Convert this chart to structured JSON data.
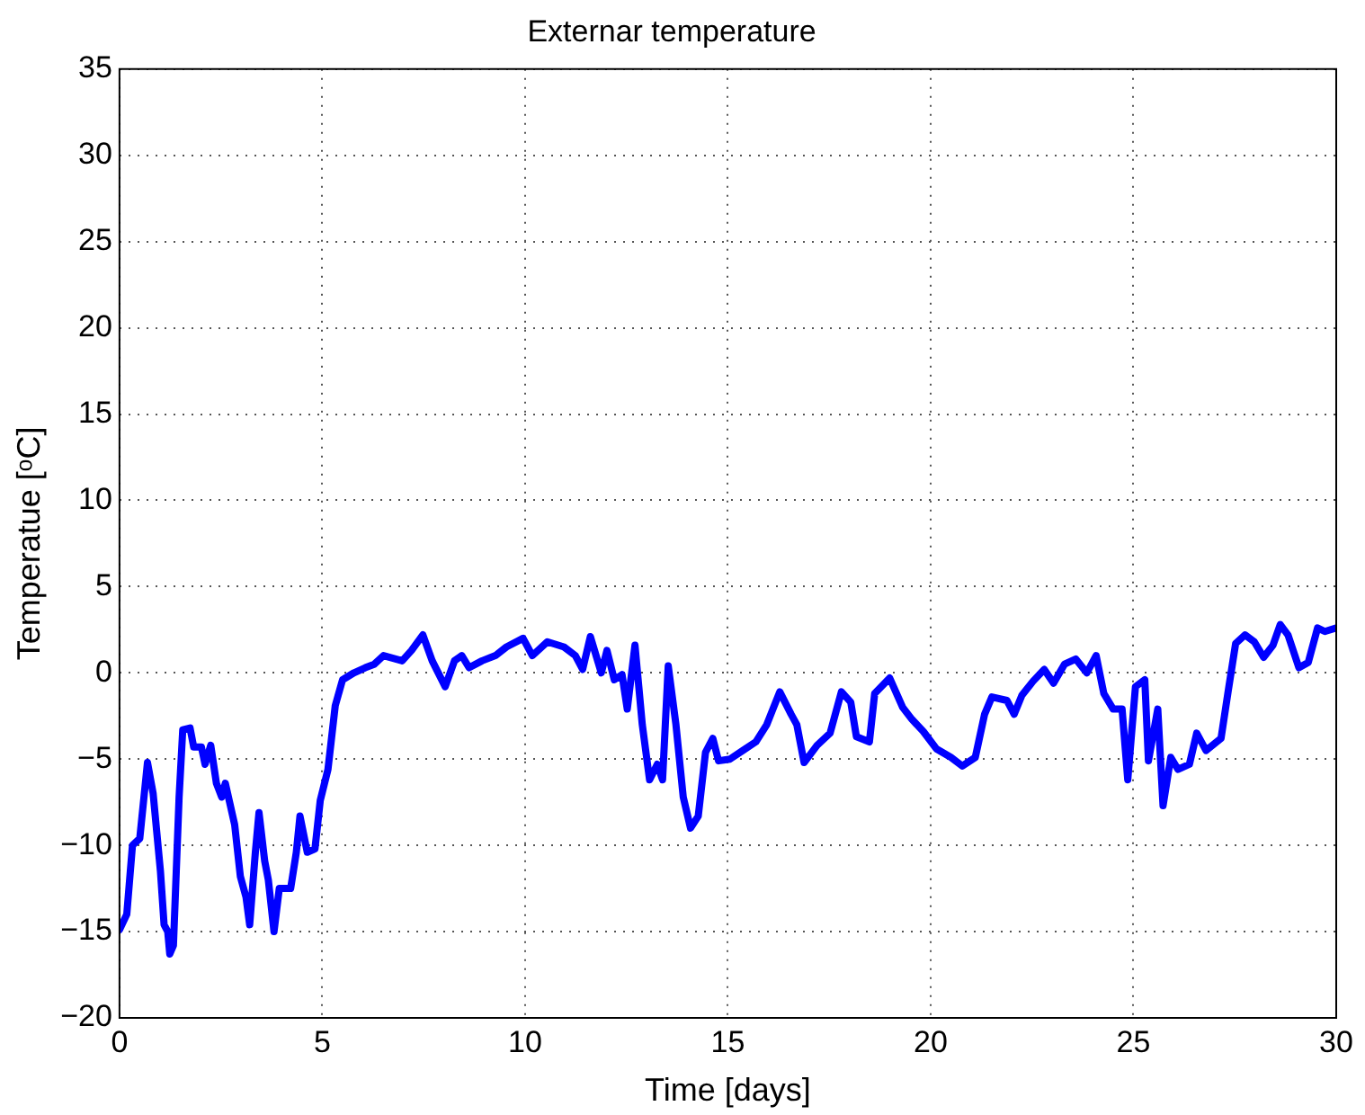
{
  "chart_data": {
    "type": "line",
    "title": "Externar temperature",
    "xlabel": "Time [days]",
    "ylabel": "Temperatue [ᵒC]",
    "xlim": [
      0,
      30
    ],
    "xticks": [
      0,
      5,
      10,
      15,
      20,
      25,
      30
    ],
    "ylim": [
      -20,
      35
    ],
    "yticks": [
      -20,
      -15,
      -10,
      -5,
      0,
      5,
      10,
      15,
      20,
      25,
      30,
      35
    ],
    "grid": true,
    "marker": "none",
    "series": [
      {
        "color": "#0000ff",
        "x": [
          0,
          0.18,
          0.32,
          0.5,
          0.69,
          0.83,
          1.01,
          1.1,
          1.19,
          1.24,
          1.33,
          1.47,
          1.56,
          1.74,
          1.83,
          2.02,
          2.11,
          2.25,
          2.39,
          2.52,
          2.61,
          2.84,
          2.98,
          3.12,
          3.21,
          3.35,
          3.44,
          3.58,
          3.67,
          3.81,
          3.94,
          4.22,
          4.36,
          4.45,
          4.63,
          4.82,
          4.95,
          5.14,
          5.32,
          5.5,
          5.78,
          6.06,
          6.28,
          6.51,
          6.97,
          7.2,
          7.48,
          7.71,
          8.03,
          8.26,
          8.44,
          8.62,
          8.94,
          9.27,
          9.54,
          9.95,
          10.18,
          10.55,
          10.96,
          11.24,
          11.42,
          11.61,
          11.88,
          12.02,
          12.2,
          12.39,
          12.52,
          12.71,
          12.89,
          13.07,
          13.26,
          13.39,
          13.53,
          13.72,
          13.9,
          14.08,
          14.27,
          14.45,
          14.63,
          14.77,
          15.05,
          15.37,
          15.69,
          15.96,
          16.28,
          16.56,
          16.7,
          16.88,
          17.2,
          17.52,
          17.8,
          18.03,
          18.17,
          18.49,
          18.62,
          18.99,
          19.31,
          19.54,
          19.82,
          20.14,
          20.5,
          20.78,
          21.1,
          21.33,
          21.51,
          21.88,
          22.06,
          22.25,
          22.52,
          22.8,
          23.03,
          23.3,
          23.58,
          23.85,
          24.08,
          24.27,
          24.5,
          24.72,
          24.86,
          25.05,
          25.28,
          25.37,
          25.6,
          25.73,
          25.92,
          26.1,
          26.38,
          26.56,
          26.79,
          27.16,
          27.34,
          27.52,
          27.75,
          27.98,
          28.21,
          28.44,
          28.62,
          28.81,
          29.08,
          29.31,
          29.54,
          29.72,
          30
        ],
        "values": [
          -14.9,
          -14,
          -10,
          -9.6,
          -5.2,
          -7,
          -11.5,
          -14.6,
          -15,
          -16.3,
          -15.8,
          -7.2,
          -3.3,
          -3.2,
          -4.3,
          -4.3,
          -5.3,
          -4.2,
          -6.4,
          -7.2,
          -6.4,
          -8.8,
          -11.8,
          -13,
          -14.6,
          -10.4,
          -8.1,
          -10.9,
          -12,
          -15,
          -12.5,
          -12.5,
          -10.4,
          -8.3,
          -10.4,
          -10.2,
          -7.4,
          -5.6,
          -1.9,
          -0.4,
          0,
          0.3,
          0.5,
          1,
          0.7,
          1.3,
          2.2,
          0.7,
          -0.8,
          0.7,
          1,
          0.3,
          0.7,
          1,
          1.5,
          2,
          1,
          1.8,
          1.5,
          1,
          0.2,
          2.1,
          0,
          1.3,
          -0.4,
          -0.1,
          -2.1,
          1.6,
          -3,
          -6.2,
          -5.3,
          -6.2,
          0.4,
          -3,
          -7.2,
          -9,
          -8.3,
          -4.6,
          -3.8,
          -5.1,
          -5,
          -4.5,
          -4,
          -3,
          -1.1,
          -2.4,
          -3,
          -5.2,
          -4.2,
          -3.5,
          -1.1,
          -1.7,
          -3.7,
          -4,
          -1.2,
          -0.3,
          -2,
          -2.7,
          -3.4,
          -4.4,
          -4.9,
          -5.4,
          -4.9,
          -2.4,
          -1.4,
          -1.6,
          -2.4,
          -1.3,
          -0.5,
          0.2,
          -0.6,
          0.5,
          0.8,
          0,
          1,
          -1.2,
          -2.1,
          -2.1,
          -6.2,
          -0.8,
          -0.4,
          -5.1,
          -2.1,
          -7.7,
          -4.9,
          -5.6,
          -5.3,
          -3.5,
          -4.5,
          -3.8,
          -1,
          1.7,
          2.2,
          1.8,
          0.9,
          1.6,
          2.8,
          2.2,
          0.3,
          0.6,
          2.6,
          2.4,
          2.6
        ]
      }
    ]
  }
}
